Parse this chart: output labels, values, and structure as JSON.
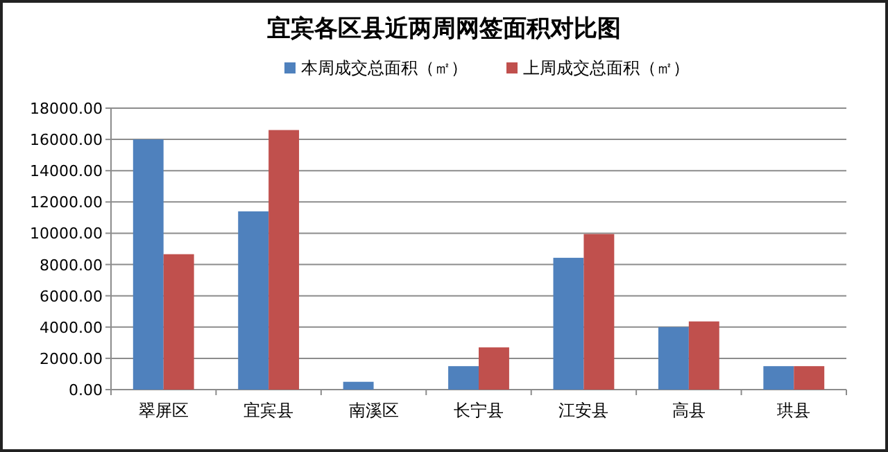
{
  "chart_data": {
    "type": "bar",
    "title": "宜宾各区县近两周网签面积对比图",
    "categories": [
      "翠屏区",
      "宜宾县",
      "南溪区",
      "长宁县",
      "江安县",
      "高县",
      "珙县"
    ],
    "series": [
      {
        "name": "本周成交总面积（㎡）",
        "color": "#4f81bd",
        "values": [
          16000,
          11400,
          500,
          1500,
          8430,
          4000,
          1500
        ]
      },
      {
        "name": "上周成交总面积（㎡）",
        "color": "#c0504d",
        "values": [
          8660,
          16600,
          0,
          2700,
          9950,
          4360,
          1500
        ]
      }
    ],
    "ylim": [
      0,
      18000
    ],
    "yticks": [
      {
        "value": 0,
        "label": "0.00"
      },
      {
        "value": 2000,
        "label": "2000.00"
      },
      {
        "value": 4000,
        "label": "4000.00"
      },
      {
        "value": 6000,
        "label": "6000.00"
      },
      {
        "value": 8000,
        "label": "8000.00"
      },
      {
        "value": 10000,
        "label": "10000.00"
      },
      {
        "value": 12000,
        "label": "12000.00"
      },
      {
        "value": 14000,
        "label": "14000.00"
      },
      {
        "value": 16000,
        "label": "16000.00"
      },
      {
        "value": 18000,
        "label": "18000.00"
      }
    ],
    "grid": "y",
    "legend": "top"
  }
}
